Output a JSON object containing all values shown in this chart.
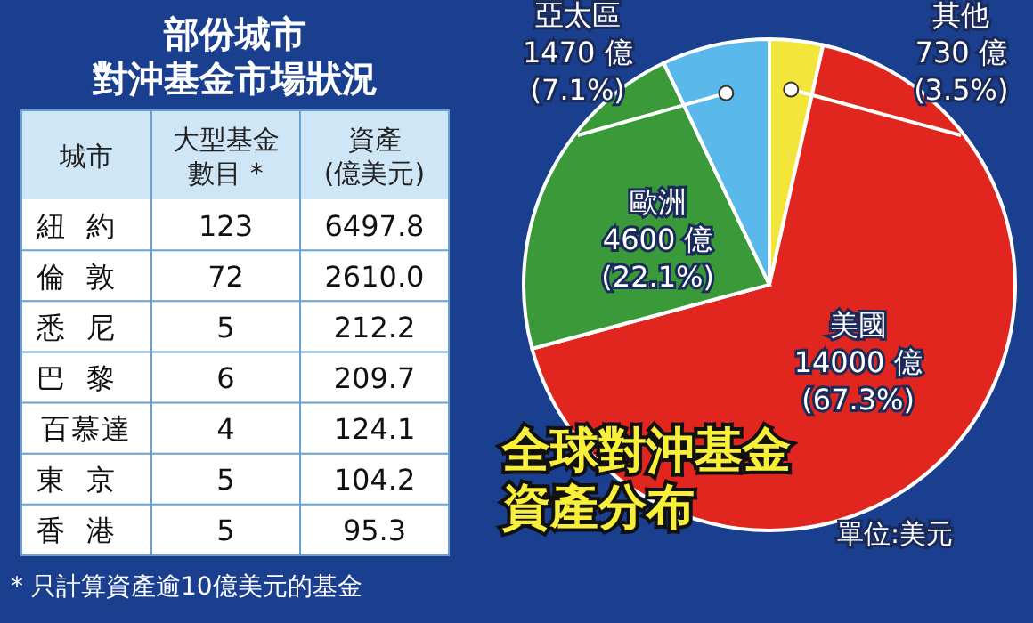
{
  "chart_data": [
    {
      "type": "other",
      "title": "部份城市對沖基金市場狀況",
      "xlabel": "城市",
      "data_labels": true,
      "categories": [
        "紐約",
        "倫敦",
        "悉尼",
        "巴黎",
        "百慕達",
        "東京",
        "香港"
      ],
      "series": [
        {
          "name": "大型基金數目 *",
          "values": [
            123,
            72,
            5,
            6,
            4,
            5,
            5
          ]
        },
        {
          "name": "資產\n(億美元)",
          "values": [
            6497.8,
            2610.0,
            212.2,
            209.7,
            124.1,
            104.2,
            95.3
          ],
          "value_labels": [
            "6497.8",
            "2610.0",
            "212.2",
            "209.7",
            "124.1",
            "104.2",
            "95.3"
          ]
        }
      ],
      "annotations": [
        "* 只計算資產逾10億美元的基金"
      ]
    },
    {
      "type": "pie",
      "title": "全球對沖基金資產分布",
      "categories": [
        "其他",
        "美國",
        "歐洲",
        "亞太區"
      ],
      "values": [
        730,
        14000,
        4600,
        1470
      ],
      "colors": [
        "#f2e63a",
        "#e0261e",
        "#3a9a3a",
        "#5ab8ea"
      ],
      "value_labels": [
        "730 億\n(3.5%)",
        "14000 億\n(67.3%)",
        "4600 億\n(22.1%)",
        "1470 億\n(7.1%)"
      ],
      "annotations": [
        "單位:美元"
      ]
    }
  ]
}
